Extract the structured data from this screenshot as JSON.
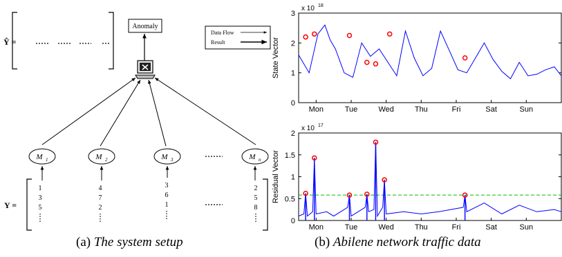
{
  "left_panel": {
    "anomaly_label": "Anomaly",
    "yhat_label": "Ŷ =",
    "y_label": "Y =",
    "legend": {
      "data_flow": "Data Flow",
      "result": "Result"
    },
    "monitors": [
      "M1",
      "M2",
      "M3",
      "Mn"
    ],
    "monitor_base": "M",
    "monitor_subs": [
      "1",
      "2",
      "3",
      "n"
    ],
    "y_columns": [
      [
        "1",
        "3",
        "5"
      ],
      [
        "4",
        "7",
        "2"
      ],
      [
        "3",
        "6",
        "1"
      ],
      [
        "2",
        "5",
        "8"
      ]
    ],
    "ellipsis": "......"
  },
  "captions": {
    "a_prefix": "(a)",
    "a_text": "The system setup",
    "b_prefix": "(b)",
    "b_text": "Abilene network traffic data"
  },
  "chart_data": [
    {
      "type": "line",
      "title": "",
      "ylabel": "State Vector",
      "scale_label": "x 10",
      "scale_exp": "18",
      "x_categories": [
        "Mon",
        "Tue",
        "Wed",
        "Thu",
        "Fri",
        "Sat",
        "Sun"
      ],
      "xlim": [
        0,
        7.5
      ],
      "ylim": [
        0,
        3
      ],
      "yticks": [
        "0",
        "1",
        "2",
        "3"
      ],
      "series": [
        {
          "color": "#0000ff",
          "x": [
            0,
            0.3,
            0.55,
            0.75,
            0.9,
            1.05,
            1.3,
            1.55,
            1.8,
            2.05,
            2.3,
            2.55,
            2.8,
            3.05,
            3.3,
            3.55,
            3.8,
            4.05,
            4.3,
            4.55,
            4.8,
            5.05,
            5.3,
            5.55,
            5.8,
            6.05,
            6.3,
            6.55,
            6.8,
            7.05,
            7.3,
            7.5
          ],
          "y": [
            1.6,
            1.0,
            2.3,
            2.6,
            2.1,
            1.8,
            1.0,
            0.85,
            2.0,
            1.55,
            1.8,
            1.35,
            0.9,
            2.4,
            1.5,
            0.9,
            1.15,
            2.4,
            1.75,
            1.1,
            1.0,
            1.5,
            2.0,
            1.45,
            1.05,
            0.8,
            1.35,
            0.9,
            0.95,
            1.1,
            1.2,
            0.9
          ]
        }
      ],
      "markers": {
        "color": "#ff0000",
        "x": [
          0.2,
          0.45,
          1.45,
          1.95,
          2.2,
          2.6,
          4.75
        ],
        "y": [
          2.2,
          2.3,
          2.25,
          1.35,
          1.3,
          2.3,
          1.5
        ]
      }
    },
    {
      "type": "line",
      "title": "",
      "ylabel": "Residual Vector",
      "scale_label": "x 10",
      "scale_exp": "17",
      "x_categories": [
        "Mon",
        "Tue",
        "Wed",
        "Thu",
        "Fri",
        "Sat",
        "Sun"
      ],
      "xlim": [
        0,
        7.5
      ],
      "ylim": [
        0,
        2
      ],
      "yticks": [
        "0",
        "0.5",
        "1",
        "1.5",
        "2"
      ],
      "threshold": 0.58,
      "series": [
        {
          "color": "#0000ff",
          "x": [
            0,
            0.15,
            0.2,
            0.25,
            0.4,
            0.45,
            0.5,
            0.8,
            1.0,
            1.4,
            1.45,
            1.5,
            1.9,
            1.95,
            2.0,
            2.15,
            2.2,
            2.25,
            2.4,
            2.45,
            2.5,
            3.0,
            3.5,
            4.0,
            4.7,
            4.75,
            4.8,
            5.3,
            5.8,
            6.3,
            6.8,
            7.3,
            7.5
          ],
          "y": [
            0.1,
            0.15,
            0.62,
            0.1,
            0.2,
            1.43,
            0.15,
            0.2,
            0.1,
            0.3,
            0.58,
            0.1,
            0.3,
            0.6,
            0.2,
            0.25,
            1.79,
            0.1,
            0.3,
            0.93,
            0.15,
            0.2,
            0.15,
            0.2,
            0.3,
            0.58,
            0.2,
            0.4,
            0.15,
            0.35,
            0.2,
            0.25,
            0.2
          ]
        }
      ],
      "markers": {
        "color": "#ff0000",
        "x": [
          0.2,
          0.45,
          1.45,
          1.95,
          2.2,
          2.45,
          4.75
        ],
        "y": [
          0.62,
          1.43,
          0.58,
          0.6,
          1.79,
          0.93,
          0.58
        ]
      }
    }
  ]
}
